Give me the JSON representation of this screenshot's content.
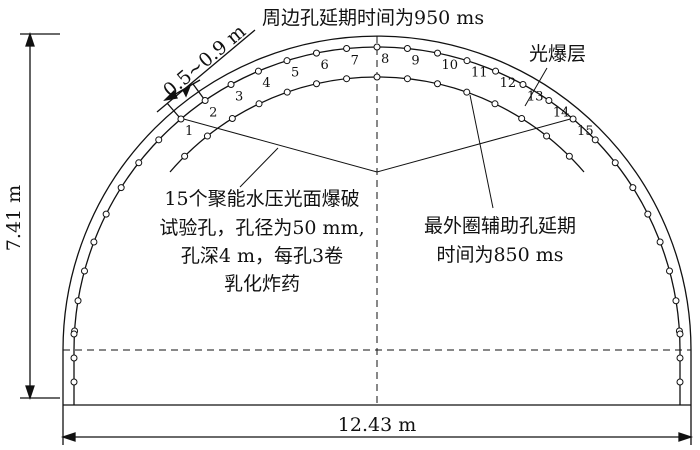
{
  "dimensions": {
    "height": "7.41 m",
    "width": "12.43 m",
    "layer_thickness": "0.5~0.9 m"
  },
  "labels": {
    "perimeter_delay": "周边孔延期时间为950 ms",
    "smooth_layer": "光爆层",
    "test_holes": [
      "15个聚能水压光面爆破",
      "试验孔，孔径为50 mm,",
      "孔深4 m，每孔3卷",
      "乳化炸药"
    ],
    "aux_delay": [
      "最外圈辅助孔延期",
      "时间为850 ms"
    ]
  },
  "hole_numbers": [
    "1",
    "2",
    "3",
    "4",
    "5",
    "6",
    "7",
    "8",
    "9",
    "10",
    "11",
    "12",
    "13",
    "14",
    "15"
  ],
  "colors": {
    "line": "#111111",
    "background": "#ffffff"
  }
}
